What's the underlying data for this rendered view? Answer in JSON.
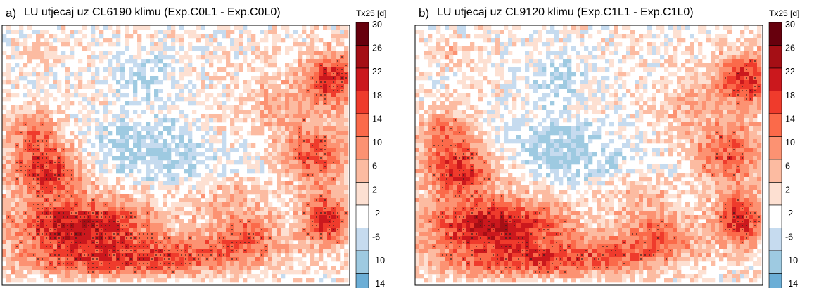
{
  "panels": [
    {
      "label": "a)",
      "title": "LU utjecaj uz CL6190 klimu (Exp.C0L1 - Exp.C0L0)",
      "seed": 17,
      "dot_density": 0.55
    },
    {
      "label": "b)",
      "title": "LU utjecaj uz CL9120 klimu (Exp.C1L1 - Exp.C1L0)",
      "seed": 91,
      "dot_density": 0.35
    }
  ],
  "colorbar": {
    "title": "Tx25 [d]",
    "ticks": [
      "30",
      "26",
      "22",
      "18",
      "14",
      "10",
      "6",
      "2",
      "-2",
      "-6",
      "-10",
      "-14"
    ],
    "colors": [
      "#67000d",
      "#a50f15",
      "#cb181d",
      "#ef3b2c",
      "#fb6a4a",
      "#fc9272",
      "#fcbba1",
      "#fde0d2",
      "#ffffff",
      "#c6dbef",
      "#9ecae1",
      "#6baed6"
    ]
  },
  "chart_data": {
    "type": "heatmap",
    "variable": "Tx25 [d]",
    "levels": [
      -14,
      -10,
      -6,
      -2,
      2,
      6,
      10,
      14,
      18,
      22,
      26,
      30
    ]
  }
}
